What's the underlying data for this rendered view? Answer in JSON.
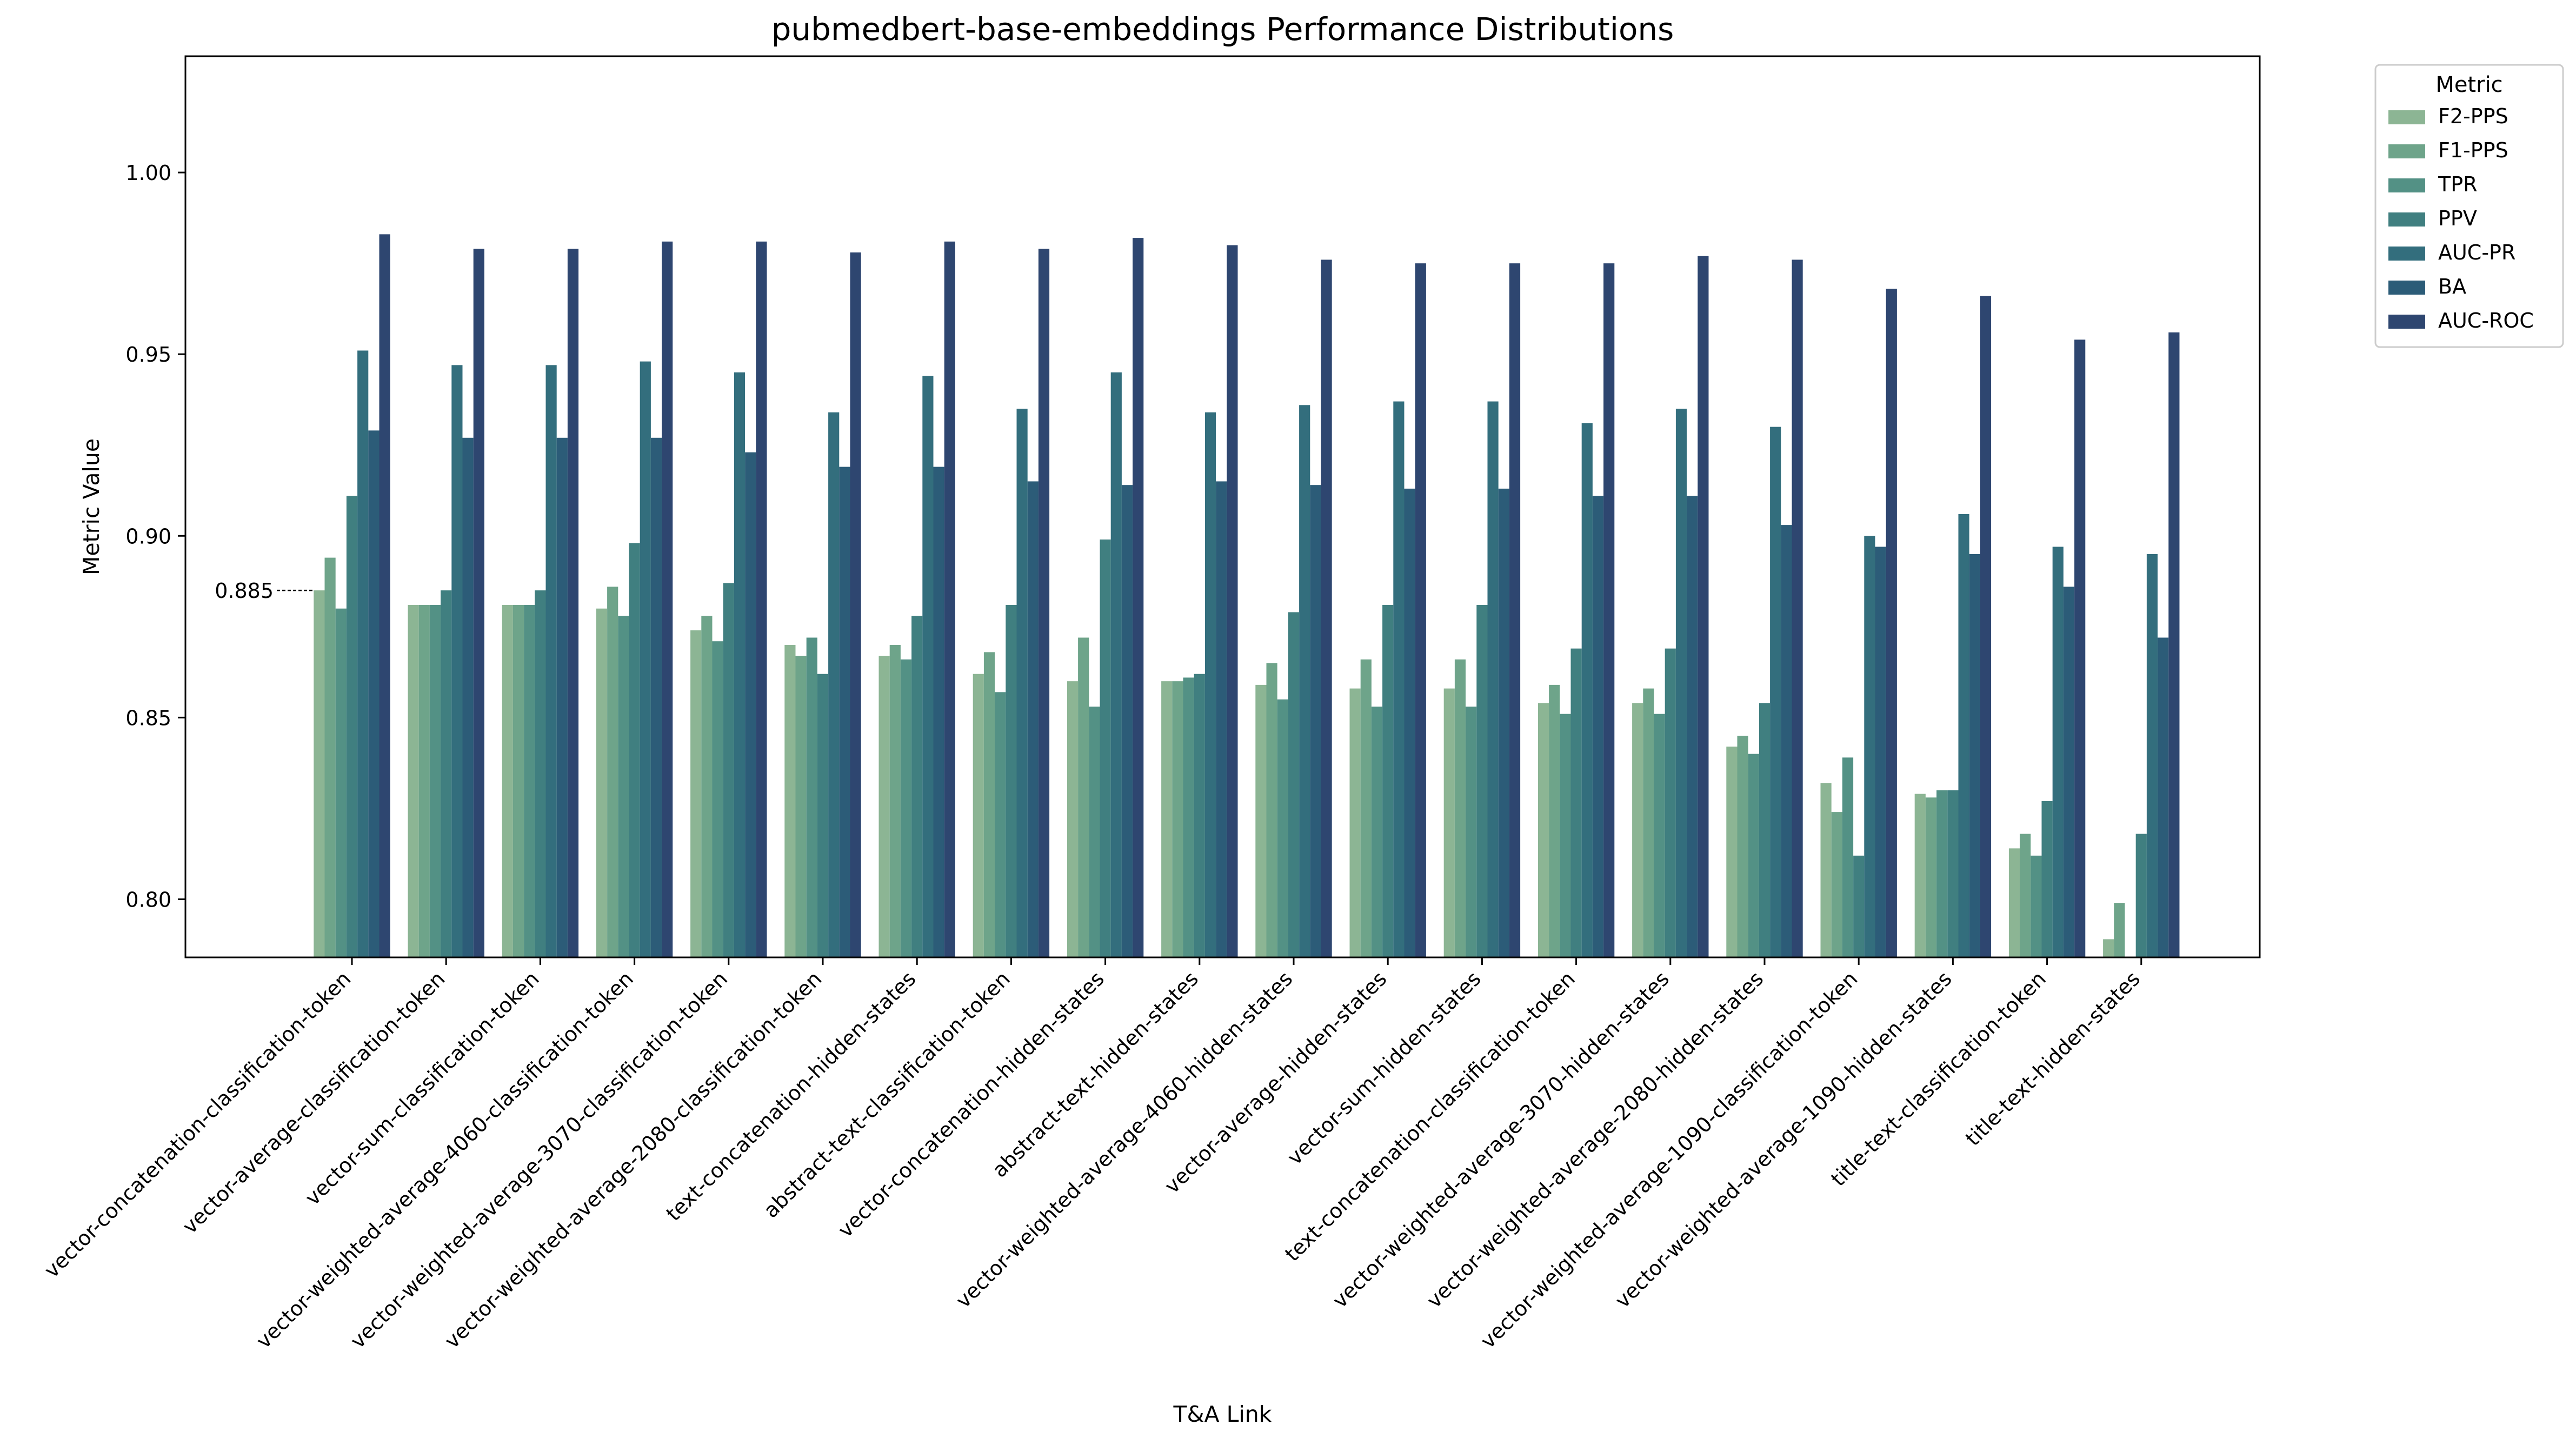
{
  "chart_data": {
    "type": "bar",
    "title": "pubmedbert-base-embeddings Performance Distributions",
    "xlabel": "T&A Link",
    "ylabel": "Metric Value",
    "ylim": [
      0.784,
      1.032
    ],
    "yticks": [
      0.8,
      0.85,
      0.9,
      0.95,
      1.0
    ],
    "ytick_labels": [
      "0.80",
      "0.85",
      "0.90",
      "0.95",
      "1.00"
    ],
    "grid": false,
    "legend": {
      "title": "Metric",
      "placement": "outside-top-right"
    },
    "annotation": {
      "text": "0.885",
      "value": 0.885,
      "category_index": 0
    },
    "categories": [
      "vector-concatenation-classification-token",
      "vector-average-classification-token",
      "vector-sum-classification-token",
      "vector-weighted-average-4060-classification-token",
      "vector-weighted-average-3070-classification-token",
      "vector-weighted-average-2080-classification-token",
      "text-concatenation-hidden-states",
      "abstract-text-classification-token",
      "vector-concatenation-hidden-states",
      "abstract-text-hidden-states",
      "vector-weighted-average-4060-hidden-states",
      "vector-average-hidden-states",
      "vector-sum-hidden-states",
      "text-concatenation-classification-token",
      "vector-weighted-average-3070-hidden-states",
      "vector-weighted-average-2080-hidden-states",
      "vector-weighted-average-1090-classification-token",
      "vector-weighted-average-1090-hidden-states",
      "title-text-classification-token",
      "title-text-hidden-states"
    ],
    "series": [
      {
        "name": "F2-PPS",
        "color": "#8cb594",
        "values": [
          0.885,
          0.881,
          0.881,
          0.88,
          0.874,
          0.87,
          0.867,
          0.862,
          0.86,
          0.86,
          0.859,
          0.858,
          0.858,
          0.854,
          0.854,
          0.842,
          0.832,
          0.829,
          0.814,
          0.789
        ]
      },
      {
        "name": "F1-PPS",
        "color": "#6ea48a",
        "values": [
          0.894,
          0.881,
          0.881,
          0.886,
          0.878,
          0.867,
          0.87,
          0.868,
          0.872,
          0.86,
          0.865,
          0.866,
          0.866,
          0.859,
          0.858,
          0.845,
          0.824,
          0.828,
          0.818,
          0.799
        ]
      },
      {
        "name": "TPR",
        "color": "#539185",
        "values": [
          0.88,
          0.881,
          0.881,
          0.878,
          0.871,
          0.872,
          0.866,
          0.857,
          0.853,
          0.861,
          0.855,
          0.853,
          0.853,
          0.851,
          0.851,
          0.84,
          0.839,
          0.83,
          0.812,
          0.777
        ]
      },
      {
        "name": "PPV",
        "color": "#407f80",
        "values": [
          0.911,
          0.885,
          0.885,
          0.898,
          0.887,
          0.862,
          0.878,
          0.881,
          0.899,
          0.862,
          0.879,
          0.881,
          0.881,
          0.869,
          0.869,
          0.854,
          0.812,
          0.83,
          0.827,
          0.818
        ]
      },
      {
        "name": "AUC-PR",
        "color": "#336e7d",
        "values": [
          0.951,
          0.947,
          0.947,
          0.948,
          0.945,
          0.934,
          0.944,
          0.935,
          0.945,
          0.934,
          0.936,
          0.937,
          0.937,
          0.931,
          0.935,
          0.93,
          0.9,
          0.906,
          0.897,
          0.895
        ]
      },
      {
        "name": "BA",
        "color": "#2c5c78",
        "values": [
          0.929,
          0.927,
          0.927,
          0.927,
          0.923,
          0.919,
          0.919,
          0.915,
          0.914,
          0.915,
          0.914,
          0.913,
          0.913,
          0.911,
          0.911,
          0.903,
          0.897,
          0.895,
          0.886,
          0.872
        ]
      },
      {
        "name": "AUC-ROC",
        "color": "#2e4670",
        "values": [
          0.983,
          0.979,
          0.979,
          0.981,
          0.981,
          0.978,
          0.981,
          0.979,
          0.982,
          0.98,
          0.976,
          0.975,
          0.975,
          0.975,
          0.977,
          0.976,
          0.968,
          0.966,
          0.954,
          0.956
        ]
      }
    ]
  }
}
